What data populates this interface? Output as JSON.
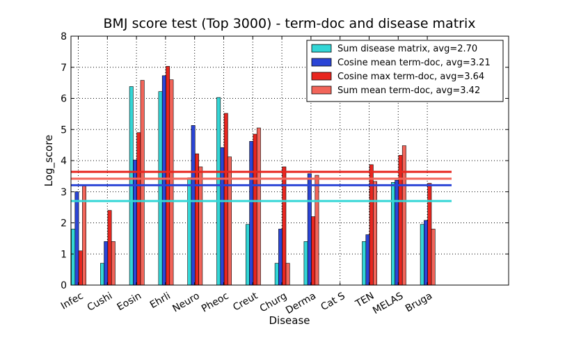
{
  "chart_data": {
    "type": "bar",
    "title": "BMJ score test (Top 3000) - term-doc and disease matrix",
    "xlabel": "Disease",
    "ylabel": "Log_score",
    "ylim": [
      0,
      8
    ],
    "yticks": [
      "0",
      "1",
      "2",
      "3",
      "4",
      "5",
      "6",
      "7",
      "8"
    ],
    "grid": true,
    "legend_position": "top-right",
    "categories": [
      "Infec",
      "Cushi",
      "Eosin",
      "Ehrli",
      "Neuro",
      "Pheoc",
      "Creut",
      "Churg",
      "Derma",
      "Cat S",
      "TEN",
      "MELAS",
      "Bruga"
    ],
    "series": [
      {
        "name": "Sum disease matrix, avg=2.70",
        "color": "#33d6d6",
        "avg": 2.7,
        "values": [
          1.8,
          0.7,
          6.38,
          6.22,
          3.45,
          6.03,
          1.95,
          0.7,
          1.4,
          0,
          1.4,
          3.3,
          1.95
        ]
      },
      {
        "name": "Cosine mean term-doc, avg=3.21",
        "color": "#2b45d6",
        "avg": 3.21,
        "values": [
          3.0,
          1.4,
          4.02,
          6.73,
          5.13,
          4.42,
          4.62,
          1.8,
          3.58,
          0,
          1.62,
          3.37,
          2.08
        ]
      },
      {
        "name": "Cosine max term-doc, avg=3.64",
        "color": "#e8261f",
        "avg": 3.64,
        "values": [
          1.1,
          2.4,
          4.9,
          7.03,
          4.22,
          5.52,
          4.85,
          3.8,
          2.2,
          0,
          3.87,
          4.17,
          3.27
        ]
      },
      {
        "name": "Sum mean term-doc, avg=3.42",
        "color": "#f2655a",
        "avg": 3.42,
        "values": [
          3.18,
          1.4,
          6.58,
          6.6,
          3.8,
          4.12,
          5.05,
          0.7,
          3.53,
          0,
          3.33,
          4.48,
          1.8
        ]
      }
    ]
  }
}
